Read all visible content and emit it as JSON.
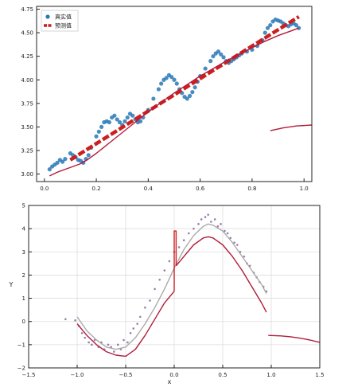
{
  "chart_data": [
    {
      "type": "scatter",
      "xlim": [
        -0.03,
        1.03
      ],
      "ylim": [
        2.92,
        4.78
      ],
      "xticks": [
        "0.0",
        "0.2",
        "0.4",
        "0.6",
        "0.8",
        "1.0"
      ],
      "xtick_values": [
        0,
        0.2,
        0.4,
        0.6,
        0.8,
        1.0
      ],
      "yticks": [
        "3.00",
        "3.25",
        "3.50",
        "3.75",
        "4.00",
        "4.25",
        "4.50",
        "4.75"
      ],
      "ytick_values": [
        3.0,
        3.25,
        3.5,
        3.75,
        4.0,
        4.25,
        4.5,
        4.75
      ],
      "legend": {
        "position": "top-left",
        "entries": [
          {
            "label": "真实值",
            "color": "#2878b5",
            "marker": "dot"
          },
          {
            "label": "预测值",
            "color": "#cc1f1f",
            "marker": "dashed-line"
          }
        ]
      },
      "grid": false,
      "series": [
        {
          "legend": "真实值",
          "style": "scatter",
          "color": "#2878b5",
          "x": [
            0.02,
            0.03,
            0.04,
            0.05,
            0.06,
            0.07,
            0.08,
            0.1,
            0.11,
            0.12,
            0.13,
            0.14,
            0.15,
            0.16,
            0.17,
            0.18,
            0.2,
            0.21,
            0.22,
            0.23,
            0.24,
            0.25,
            0.26,
            0.27,
            0.28,
            0.29,
            0.3,
            0.31,
            0.32,
            0.33,
            0.34,
            0.35,
            0.36,
            0.37,
            0.38,
            0.4,
            0.42,
            0.44,
            0.45,
            0.46,
            0.47,
            0.48,
            0.49,
            0.5,
            0.51,
            0.52,
            0.53,
            0.54,
            0.55,
            0.56,
            0.57,
            0.58,
            0.59,
            0.6,
            0.62,
            0.64,
            0.65,
            0.66,
            0.67,
            0.68,
            0.69,
            0.7,
            0.71,
            0.72,
            0.73,
            0.74,
            0.75,
            0.76,
            0.78,
            0.8,
            0.82,
            0.84,
            0.85,
            0.86,
            0.87,
            0.88,
            0.89,
            0.9,
            0.91,
            0.92,
            0.93,
            0.94,
            0.95,
            0.96,
            0.97,
            0.98
          ],
          "y": [
            3.05,
            3.08,
            3.1,
            3.12,
            3.15,
            3.13,
            3.16,
            3.22,
            3.2,
            3.18,
            3.15,
            3.14,
            3.12,
            3.16,
            3.2,
            3.28,
            3.4,
            3.45,
            3.5,
            3.55,
            3.56,
            3.55,
            3.6,
            3.62,
            3.58,
            3.55,
            3.52,
            3.56,
            3.6,
            3.64,
            3.62,
            3.58,
            3.55,
            3.56,
            3.6,
            3.68,
            3.8,
            3.9,
            3.96,
            4.0,
            4.02,
            4.05,
            4.03,
            4.0,
            3.96,
            3.9,
            3.86,
            3.82,
            3.8,
            3.83,
            3.87,
            3.92,
            3.98,
            4.04,
            4.12,
            4.2,
            4.25,
            4.28,
            4.3,
            4.27,
            4.24,
            4.2,
            4.18,
            4.2,
            4.22,
            4.24,
            4.26,
            4.28,
            4.3,
            4.32,
            4.36,
            4.42,
            4.5,
            4.55,
            4.58,
            4.62,
            4.64,
            4.63,
            4.62,
            4.6,
            4.58,
            4.57,
            4.59,
            4.6,
            4.58,
            4.55
          ]
        },
        {
          "legend": "预测值",
          "style": "dashed-line",
          "color": "#cc1f1f",
          "x": [
            0.1,
            0.98
          ],
          "y": [
            3.15,
            4.67
          ]
        },
        {
          "style": "line",
          "color": "#b01c3a",
          "x": [
            0.02,
            0.05,
            0.08,
            0.11,
            0.14,
            0.17,
            0.2,
            0.25,
            0.3,
            0.35,
            0.4,
            0.45,
            0.5,
            0.55,
            0.6,
            0.65,
            0.7,
            0.75,
            0.8,
            0.85,
            0.9,
            0.95,
            0.98
          ],
          "y": [
            2.98,
            3.02,
            3.05,
            3.08,
            3.11,
            3.16,
            3.22,
            3.33,
            3.44,
            3.55,
            3.66,
            3.76,
            3.86,
            3.95,
            4.04,
            4.12,
            4.2,
            4.27,
            4.34,
            4.41,
            4.47,
            4.52,
            4.55
          ]
        },
        {
          "style": "line",
          "color": "#b01c3a",
          "x": [
            0.87,
            0.92,
            0.97,
            1.03
          ],
          "y": [
            3.46,
            3.49,
            3.51,
            3.52
          ]
        }
      ]
    },
    {
      "type": "scatter",
      "xlim": [
        -1.5,
        1.5
      ],
      "ylim": [
        -2.0,
        5.0
      ],
      "xticks": [
        "−1.5",
        "−1.0",
        "−0.5",
        "0.0",
        "0.5",
        "1.0",
        "1.5"
      ],
      "xtick_values": [
        -1.5,
        -1.0,
        -0.5,
        0.0,
        0.5,
        1.0,
        1.5
      ],
      "yticks": [
        "−2",
        "−1",
        "0",
        "1",
        "2",
        "3",
        "4",
        "5"
      ],
      "ytick_values": [
        -2,
        -1,
        0,
        1,
        2,
        3,
        4,
        5
      ],
      "xlabel": "x",
      "ylabel": "Y",
      "grid": true,
      "series": [
        {
          "style": "scatter",
          "color": "#6b4a8a",
          "x": [
            -1.12,
            -1.02,
            -0.98,
            -0.95,
            -0.92,
            -0.88,
            -0.85,
            -0.82,
            -0.78,
            -0.75,
            -0.72,
            -0.68,
            -0.65,
            -0.62,
            -0.58,
            -0.55,
            -0.52,
            -0.48,
            -0.45,
            -0.42,
            -0.38,
            -0.35,
            -0.3,
            -0.25,
            -0.2,
            -0.15,
            -0.1,
            -0.05,
            0.0,
            0.05,
            0.1,
            0.15,
            0.2,
            0.25,
            0.28,
            0.32,
            0.35,
            0.38,
            0.42,
            0.45,
            0.48,
            0.52,
            0.55,
            0.58,
            0.62,
            0.65,
            0.68,
            0.72,
            0.75,
            0.78,
            0.82,
            0.85,
            0.88,
            0.92,
            0.95
          ],
          "y": [
            0.1,
            0.05,
            -0.2,
            -0.5,
            -0.7,
            -0.9,
            -1.0,
            -0.8,
            -1.1,
            -0.9,
            -1.2,
            -1.0,
            -1.1,
            -1.3,
            -1.0,
            -1.2,
            -0.8,
            -0.9,
            -0.5,
            -0.3,
            -0.1,
            0.2,
            0.6,
            0.9,
            1.4,
            1.8,
            2.2,
            2.6,
            3.0,
            3.2,
            3.5,
            3.8,
            4.0,
            4.2,
            4.4,
            4.5,
            4.6,
            4.3,
            4.4,
            4.1,
            4.2,
            3.9,
            3.8,
            3.6,
            3.4,
            3.3,
            3.0,
            2.8,
            2.5,
            2.4,
            2.1,
            1.9,
            1.7,
            1.5,
            1.3
          ]
        },
        {
          "style": "line",
          "color": "#aaaaaa",
          "x": [
            -1.0,
            -0.9,
            -0.8,
            -0.7,
            -0.6,
            -0.5,
            -0.4,
            -0.3,
            -0.2,
            -0.1,
            0.0,
            0.1,
            0.2,
            0.3,
            0.35,
            0.4,
            0.5,
            0.6,
            0.7,
            0.8,
            0.9,
            0.95
          ],
          "y": [
            0.2,
            -0.4,
            -0.8,
            -1.1,
            -1.2,
            -1.1,
            -0.7,
            -0.1,
            0.6,
            1.4,
            2.3,
            3.1,
            3.7,
            4.1,
            4.2,
            4.15,
            3.9,
            3.4,
            2.8,
            2.2,
            1.6,
            1.2
          ]
        },
        {
          "style": "line",
          "color": "#b01c3a",
          "x": [
            -1.0,
            -0.9,
            -0.8,
            -0.7,
            -0.6,
            -0.5,
            -0.4,
            -0.3,
            -0.2,
            -0.1,
            0.0
          ],
          "y": [
            -0.1,
            -0.6,
            -1.0,
            -1.3,
            -1.45,
            -1.5,
            -1.2,
            -0.6,
            0.1,
            0.8,
            1.3
          ]
        },
        {
          "style": "line",
          "color": "#cc1f1f",
          "x": [
            0.0,
            0.0,
            0.02,
            0.02
          ],
          "y": [
            1.3,
            3.9,
            3.9,
            2.4
          ]
        },
        {
          "style": "line",
          "color": "#b01c3a",
          "x": [
            0.02,
            0.1,
            0.2,
            0.3,
            0.35,
            0.4,
            0.5,
            0.6,
            0.7,
            0.8,
            0.9,
            0.95
          ],
          "y": [
            2.4,
            2.8,
            3.3,
            3.6,
            3.65,
            3.6,
            3.3,
            2.8,
            2.2,
            1.5,
            0.8,
            0.4
          ]
        },
        {
          "style": "line",
          "color": "#b01c3a",
          "x": [
            0.97,
            1.1,
            1.2,
            1.3,
            1.4,
            1.5
          ],
          "y": [
            -0.6,
            -0.62,
            -0.66,
            -0.72,
            -0.8,
            -0.9
          ]
        }
      ]
    }
  ]
}
